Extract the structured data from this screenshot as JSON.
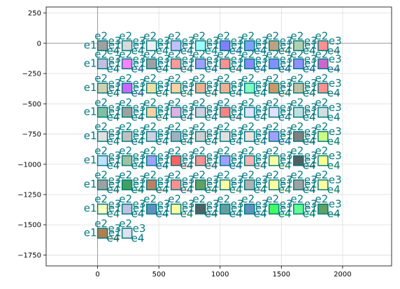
{
  "chart_data": {
    "type": "scatter",
    "xlim": [
      -420,
      2400
    ],
    "ylim": [
      -1840,
      300
    ],
    "xticks": [
      0,
      500,
      1000,
      1500,
      2000
    ],
    "yticks": [
      250,
      0,
      -250,
      -500,
      -750,
      -1000,
      -1250,
      -1500,
      -1750
    ],
    "xtick_labels": [
      "0",
      "500",
      "1000",
      "1500",
      "2000"
    ],
    "ytick_labels": [
      "250",
      "0",
      "−250",
      "−500",
      "−750",
      "−1000",
      "−1250",
      "−1500",
      "−1750"
    ],
    "grid": true,
    "zero_axis_lines": true,
    "colors": {
      "grid": "#dddddd",
      "zero_line": "#999999",
      "node_label": "#007a80",
      "node_outline": "#007a80",
      "edge_gray": "#c8c8c8"
    },
    "node_labels": {
      "top": "e2",
      "left": "e1",
      "right": "e3",
      "bottom": "e4"
    },
    "grid_spacing": 200,
    "grid_origin": [
      0,
      0
    ],
    "rows": [
      {
        "y": 0,
        "count": 10,
        "colors": [
          "#a0a0a0",
          "#d9d9d9",
          "#f0f0f0",
          "#c0c0ff",
          "#a0ffff",
          "#8080ff",
          "#80a0ff",
          "#c0a080",
          "#b0d0b0",
          "#ff9090"
        ]
      },
      {
        "y": -150,
        "count": 10,
        "colors": [
          "#c0c0e0",
          "#ff80ff",
          "#a0a0a0",
          "#ff9999",
          "#a0a0ff",
          "#ff9090",
          "#8888ff",
          "#8090ff",
          "#9090ff",
          "#cc66cc"
        ]
      },
      {
        "y": -350,
        "count": 10,
        "colors": [
          "#d0d0b0",
          "#cc66ff",
          "#f0e0a0",
          "#ffd0a0",
          "#f0b090",
          "#f0b090",
          "#80ffc0",
          "#cc9966",
          "#c0c0a0",
          "#ff9090"
        ]
      },
      {
        "y": -550,
        "count": 10,
        "colors": [
          "#80c0a0",
          "#a0a0a0",
          "#ffd0a0",
          "#e0b0e0",
          "#d0d0e0",
          "#ff8080",
          "#e0e0ff",
          "#e0e0ff",
          "#c0e0e0",
          "#d0e0e0"
        ]
      },
      {
        "y": -750,
        "count": 10,
        "colors": [
          "#e0e0e0",
          "#c0c0c0",
          "#d0d0e0",
          "#a0b0c0",
          "#d0d0d0",
          "#e0e0e0",
          "#f0e0e0",
          "#a0a0ff",
          "#808080",
          "#ccff80"
        ]
      },
      {
        "y": -950,
        "count": 10,
        "colors": [
          "#c0e0ff",
          "#a0c0a0",
          "#a0a0ff",
          "#ff6060",
          "#ff9090",
          "#a0a0ff",
          "#ffb0b0",
          "#ffffa0",
          "#506060",
          "#ffff90"
        ]
      },
      {
        "y": -1150,
        "count": 10,
        "colors": [
          "#a0a0a0",
          "#40a060",
          "#c08060",
          "#ff9090",
          "#60a060",
          "#ffffa0",
          "#b0b0b0",
          "#ffffa0",
          "#a0a0a0",
          "#ffffa0"
        ]
      },
      {
        "y": -1350,
        "count": 10,
        "colors": [
          "#ffffc0",
          "#c0c0e0",
          "#6090c0",
          "#ffffa0",
          "#506060",
          "#60a0a0",
          "#6090c0",
          "#40ff60",
          "#60ff90",
          "#60a060"
        ]
      },
      {
        "y": -1550,
        "count": 2,
        "colors": [
          "#b08050",
          "#e0e0f0"
        ]
      }
    ]
  }
}
